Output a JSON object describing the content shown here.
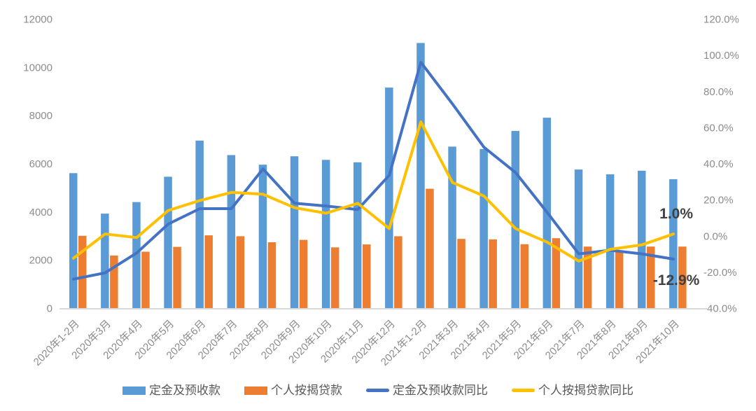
{
  "chart_data": {
    "type": "combo",
    "title": "",
    "categories": [
      "2020年1-2月",
      "2020年3月",
      "2020年4月",
      "2020年5月",
      "2020年6月",
      "2020年7月",
      "2020年8月",
      "2020年9月",
      "2020年10月",
      "2020年11月",
      "2020年12月",
      "2021年1-2月",
      "2021年3月",
      "2021年4月",
      "2021年5月",
      "2021年6月",
      "2021年7月",
      "2021年8月",
      "2021年9月",
      "2021年10月"
    ],
    "series": [
      {
        "name": "定金及预收款",
        "type": "bar",
        "axis": "left",
        "color": "#5B9BD5",
        "values": [
          5600,
          3920,
          4400,
          5450,
          6950,
          6350,
          5950,
          6300,
          6150,
          6050,
          9150,
          11000,
          6700,
          6600,
          7350,
          7900,
          5750,
          5550,
          5700,
          5350
        ]
      },
      {
        "name": "个人按揭贷款",
        "type": "bar",
        "axis": "left",
        "color": "#ED7D31",
        "values": [
          3000,
          2180,
          2340,
          2540,
          3020,
          2980,
          2730,
          2830,
          2520,
          2640,
          2980,
          4950,
          2870,
          2850,
          2650,
          2900,
          2550,
          2400,
          2550,
          2550
        ]
      },
      {
        "name": "定金及预收款同比",
        "type": "line",
        "axis": "right",
        "color": "#4472C4",
        "values": [
          -24,
          -20.5,
          -9.5,
          6.5,
          15,
          15,
          37,
          18,
          16.5,
          14.5,
          33.5,
          96,
          73,
          49,
          35,
          13,
          -10,
          -8,
          -10,
          -12.9
        ]
      },
      {
        "name": "个人按揭贷款同比",
        "type": "line",
        "axis": "right",
        "color": "#FFC000",
        "values": [
          -12.4,
          1,
          -1,
          14,
          19.5,
          24,
          23,
          15.5,
          12.5,
          18,
          4,
          63,
          29.5,
          22,
          4,
          -3.5,
          -14,
          -7.5,
          -5,
          1
        ]
      }
    ],
    "left_axis": {
      "min": 0,
      "max": 12000,
      "tick_values": [
        0,
        2000,
        4000,
        6000,
        8000,
        10000,
        12000
      ],
      "tick_labels": [
        "0",
        "2000",
        "4000",
        "6000",
        "8000",
        "10000",
        "12000"
      ]
    },
    "right_axis": {
      "min": -40,
      "max": 120,
      "tick_values": [
        -40,
        -20,
        0,
        20,
        40,
        60,
        80,
        100,
        120
      ],
      "tick_labels": [
        "-40.0%",
        "-20.0%",
        "0.0%",
        "20.0%",
        "40.0%",
        "60.0%",
        "80.0%",
        "100.0%",
        "120.0%"
      ]
    },
    "annotations": [
      {
        "text": "1.0%",
        "series": "个人按揭贷款同比",
        "category": "2021年10月",
        "position": "above"
      },
      {
        "text": "-12.9%",
        "series": "定金及预收款同比",
        "category": "2021年10月",
        "position": "below"
      }
    ],
    "legend_position": "bottom",
    "grid": false,
    "colors": {
      "axis_text": "#8C8C8C",
      "annotation_text": "#404040",
      "axis_line": "#D9D9D9",
      "background": "#FFFFFF"
    }
  }
}
